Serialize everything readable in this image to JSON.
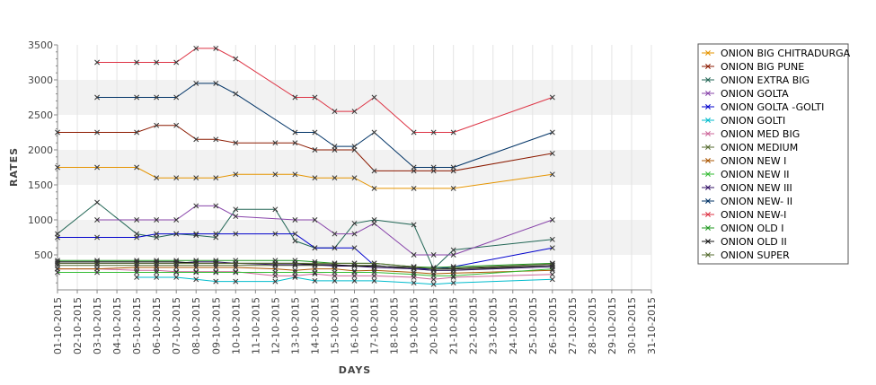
{
  "chart_data": {
    "type": "line",
    "title": "",
    "xlabel": "DAYS",
    "ylabel": "RATES",
    "ylim": [
      0,
      3500
    ],
    "y_ticks": [
      500,
      1000,
      1500,
      2000,
      2500,
      3000,
      3500
    ],
    "grid": "alternating horizontal bands",
    "legend_position": "right",
    "categories": [
      "01-10-2015",
      "02-10-2015",
      "03-10-2015",
      "04-10-2015",
      "05-10-2015",
      "06-10-2015",
      "07-10-2015",
      "08-10-2015",
      "09-10-2015",
      "10-10-2015",
      "11-10-2015",
      "12-10-2015",
      "13-10-2015",
      "14-10-2015",
      "15-10-2015",
      "16-10-2015",
      "17-10-2015",
      "18-10-2015",
      "19-10-2015",
      "20-10-2015",
      "21-10-2015",
      "22-10-2015",
      "23-10-2015",
      "24-10-2015",
      "25-10-2015",
      "26-10-2015",
      "27-10-2015",
      "28-10-2015",
      "29-10-2015",
      "30-10-2015",
      "31-10-2015"
    ],
    "series": [
      {
        "name": "ONION BIG CHITRADURGA",
        "color": "#e59400",
        "points": [
          [
            0,
            1750
          ],
          [
            2,
            1750
          ],
          [
            4,
            1750
          ],
          [
            5,
            1600
          ],
          [
            6,
            1600
          ],
          [
            7,
            1600
          ],
          [
            8,
            1600
          ],
          [
            9,
            1650
          ],
          [
            11,
            1650
          ],
          [
            12,
            1650
          ],
          [
            13,
            1600
          ],
          [
            14,
            1600
          ],
          [
            15,
            1600
          ],
          [
            16,
            1450
          ],
          [
            18,
            1450
          ],
          [
            20,
            1450
          ],
          [
            25,
            1650
          ]
        ]
      },
      {
        "name": "ONION BIG PUNE",
        "color": "#8b1a00",
        "points": [
          [
            0,
            2250
          ],
          [
            2,
            2250
          ],
          [
            4,
            2250
          ],
          [
            5,
            2350
          ],
          [
            6,
            2350
          ],
          [
            7,
            2150
          ],
          [
            8,
            2150
          ],
          [
            9,
            2100
          ],
          [
            11,
            2100
          ],
          [
            12,
            2100
          ],
          [
            13,
            2000
          ],
          [
            14,
            2000
          ],
          [
            15,
            2000
          ],
          [
            16,
            1700
          ],
          [
            18,
            1700
          ],
          [
            19,
            1700
          ],
          [
            20,
            1700
          ],
          [
            25,
            1950
          ]
        ]
      },
      {
        "name": "ONION EXTRA BIG",
        "color": "#226655",
        "points": [
          [
            0,
            800
          ],
          [
            2,
            1250
          ],
          [
            4,
            800
          ],
          [
            5,
            750
          ],
          [
            6,
            800
          ],
          [
            7,
            780
          ],
          [
            8,
            750
          ],
          [
            9,
            1150
          ],
          [
            11,
            1150
          ],
          [
            12,
            700
          ],
          [
            13,
            600
          ],
          [
            14,
            600
          ],
          [
            15,
            950
          ],
          [
            16,
            1000
          ],
          [
            18,
            930
          ],
          [
            19,
            300
          ],
          [
            20,
            570
          ],
          [
            25,
            720
          ]
        ]
      },
      {
        "name": "ONION GOLTA",
        "color": "#8844aa",
        "points": [
          [
            2,
            1000
          ],
          [
            4,
            1000
          ],
          [
            5,
            1000
          ],
          [
            6,
            1000
          ],
          [
            7,
            1200
          ],
          [
            8,
            1200
          ],
          [
            9,
            1050
          ],
          [
            12,
            1000
          ],
          [
            13,
            1000
          ],
          [
            14,
            800
          ],
          [
            15,
            800
          ],
          [
            16,
            950
          ],
          [
            18,
            500
          ],
          [
            19,
            500
          ],
          [
            20,
            500
          ],
          [
            25,
            1000
          ]
        ]
      },
      {
        "name": "ONION GOLTA -GOLTI",
        "color": "#0000cc",
        "points": [
          [
            0,
            750
          ],
          [
            2,
            750
          ],
          [
            4,
            750
          ],
          [
            5,
            800
          ],
          [
            6,
            800
          ],
          [
            7,
            800
          ],
          [
            8,
            800
          ],
          [
            9,
            800
          ],
          [
            11,
            800
          ],
          [
            12,
            800
          ],
          [
            13,
            600
          ],
          [
            14,
            600
          ],
          [
            15,
            600
          ],
          [
            16,
            350
          ],
          [
            18,
            300
          ],
          [
            19,
            300
          ],
          [
            20,
            330
          ],
          [
            25,
            600
          ]
        ]
      },
      {
        "name": "ONION GOLTI",
        "color": "#00bbcc",
        "points": [
          [
            4,
            180
          ],
          [
            5,
            180
          ],
          [
            6,
            180
          ],
          [
            7,
            150
          ],
          [
            8,
            120
          ],
          [
            9,
            120
          ],
          [
            11,
            120
          ],
          [
            12,
            180
          ],
          [
            13,
            130
          ],
          [
            14,
            130
          ],
          [
            15,
            130
          ],
          [
            16,
            130
          ],
          [
            18,
            100
          ],
          [
            19,
            80
          ],
          [
            20,
            100
          ],
          [
            25,
            150
          ]
        ]
      },
      {
        "name": "ONION MED BIG",
        "color": "#cc6699",
        "points": [
          [
            0,
            300
          ],
          [
            2,
            300
          ],
          [
            4,
            280
          ],
          [
            5,
            280
          ],
          [
            6,
            260
          ],
          [
            7,
            260
          ],
          [
            8,
            260
          ],
          [
            9,
            260
          ],
          [
            11,
            200
          ],
          [
            12,
            200
          ],
          [
            13,
            230
          ],
          [
            14,
            200
          ],
          [
            15,
            200
          ],
          [
            16,
            200
          ],
          [
            18,
            180
          ],
          [
            19,
            150
          ],
          [
            20,
            180
          ],
          [
            25,
            220
          ]
        ]
      },
      {
        "name": "ONION MEDIUM",
        "color": "#556b2f",
        "points": [
          [
            0,
            350
          ],
          [
            2,
            350
          ],
          [
            4,
            350
          ],
          [
            5,
            350
          ],
          [
            6,
            350
          ],
          [
            7,
            350
          ],
          [
            8,
            350
          ],
          [
            9,
            350
          ],
          [
            11,
            350
          ],
          [
            12,
            350
          ],
          [
            13,
            350
          ],
          [
            14,
            350
          ],
          [
            15,
            350
          ],
          [
            16,
            350
          ],
          [
            18,
            300
          ],
          [
            19,
            280
          ],
          [
            20,
            280
          ],
          [
            25,
            350
          ]
        ]
      },
      {
        "name": "ONION NEW I",
        "color": "#aa5500",
        "points": [
          [
            0,
            300
          ],
          [
            2,
            300
          ],
          [
            4,
            320
          ],
          [
            5,
            320
          ],
          [
            6,
            320
          ],
          [
            7,
            320
          ],
          [
            8,
            320
          ],
          [
            9,
            320
          ],
          [
            11,
            300
          ],
          [
            12,
            280
          ],
          [
            13,
            300
          ],
          [
            14,
            300
          ],
          [
            15,
            270
          ],
          [
            16,
            280
          ],
          [
            18,
            250
          ],
          [
            19,
            230
          ],
          [
            20,
            240
          ],
          [
            25,
            280
          ]
        ]
      },
      {
        "name": "ONION NEW II",
        "color": "#33bb33",
        "points": [
          [
            0,
            250
          ],
          [
            2,
            250
          ],
          [
            4,
            250
          ],
          [
            5,
            250
          ],
          [
            6,
            250
          ],
          [
            7,
            250
          ],
          [
            8,
            250
          ],
          [
            9,
            250
          ],
          [
            11,
            250
          ],
          [
            12,
            250
          ],
          [
            13,
            250
          ],
          [
            14,
            250
          ],
          [
            15,
            250
          ],
          [
            16,
            250
          ],
          [
            18,
            220
          ],
          [
            19,
            200
          ],
          [
            20,
            200
          ],
          [
            25,
            300
          ]
        ]
      },
      {
        "name": "ONION NEW III",
        "color": "#331166",
        "points": [
          [
            0,
            380
          ],
          [
            2,
            380
          ],
          [
            4,
            380
          ],
          [
            5,
            380
          ],
          [
            6,
            380
          ],
          [
            7,
            400
          ],
          [
            8,
            400
          ],
          [
            9,
            380
          ],
          [
            11,
            360
          ],
          [
            12,
            360
          ],
          [
            13,
            360
          ],
          [
            14,
            340
          ],
          [
            15,
            340
          ],
          [
            16,
            320
          ],
          [
            18,
            300
          ],
          [
            19,
            280
          ],
          [
            20,
            280
          ],
          [
            25,
            330
          ]
        ]
      },
      {
        "name": "ONION NEW- II",
        "color": "#003366",
        "points": [
          [
            2,
            2750
          ],
          [
            4,
            2750
          ],
          [
            5,
            2750
          ],
          [
            6,
            2750
          ],
          [
            7,
            2950
          ],
          [
            8,
            2950
          ],
          [
            9,
            2800
          ],
          [
            12,
            2250
          ],
          [
            13,
            2250
          ],
          [
            14,
            2050
          ],
          [
            15,
            2050
          ],
          [
            16,
            2250
          ],
          [
            18,
            1750
          ],
          [
            19,
            1750
          ],
          [
            20,
            1750
          ],
          [
            25,
            2250
          ]
        ]
      },
      {
        "name": "ONION NEW-I",
        "color": "#dd3344",
        "points": [
          [
            2,
            3250
          ],
          [
            4,
            3250
          ],
          [
            5,
            3250
          ],
          [
            6,
            3250
          ],
          [
            7,
            3450
          ],
          [
            8,
            3450
          ],
          [
            9,
            3300
          ],
          [
            12,
            2750
          ],
          [
            13,
            2750
          ],
          [
            14,
            2550
          ],
          [
            15,
            2550
          ],
          [
            16,
            2750
          ],
          [
            18,
            2250
          ],
          [
            19,
            2250
          ],
          [
            20,
            2250
          ],
          [
            25,
            2750
          ]
        ]
      },
      {
        "name": "ONION OLD I",
        "color": "#229922",
        "points": [
          [
            0,
            420
          ],
          [
            2,
            420
          ],
          [
            4,
            420
          ],
          [
            5,
            420
          ],
          [
            6,
            420
          ],
          [
            7,
            420
          ],
          [
            8,
            420
          ],
          [
            9,
            420
          ],
          [
            11,
            420
          ],
          [
            12,
            420
          ],
          [
            13,
            400
          ],
          [
            14,
            380
          ],
          [
            15,
            380
          ],
          [
            16,
            380
          ],
          [
            18,
            330
          ],
          [
            19,
            320
          ],
          [
            20,
            330
          ],
          [
            25,
            380
          ]
        ]
      },
      {
        "name": "ONION OLD II",
        "color": "#111111",
        "points": [
          [
            0,
            400
          ],
          [
            2,
            400
          ],
          [
            4,
            400
          ],
          [
            5,
            400
          ],
          [
            6,
            400
          ],
          [
            7,
            380
          ],
          [
            8,
            380
          ],
          [
            9,
            380
          ],
          [
            11,
            380
          ],
          [
            12,
            380
          ],
          [
            13,
            360
          ],
          [
            14,
            360
          ],
          [
            15,
            340
          ],
          [
            16,
            340
          ],
          [
            18,
            320
          ],
          [
            19,
            300
          ],
          [
            20,
            300
          ],
          [
            25,
            350
          ]
        ]
      },
      {
        "name": "ONION SUPER",
        "color": "#556b2f",
        "points": [
          [
            0,
            380
          ],
          [
            2,
            380
          ],
          [
            4,
            380
          ],
          [
            5,
            380
          ],
          [
            6,
            380
          ],
          [
            7,
            380
          ],
          [
            8,
            380
          ],
          [
            9,
            380
          ],
          [
            11,
            380
          ],
          [
            12,
            380
          ],
          [
            13,
            380
          ],
          [
            14,
            380
          ],
          [
            15,
            380
          ],
          [
            16,
            380
          ],
          [
            18,
            330
          ],
          [
            19,
            300
          ],
          [
            20,
            310
          ],
          [
            25,
            370
          ]
        ]
      }
    ]
  }
}
